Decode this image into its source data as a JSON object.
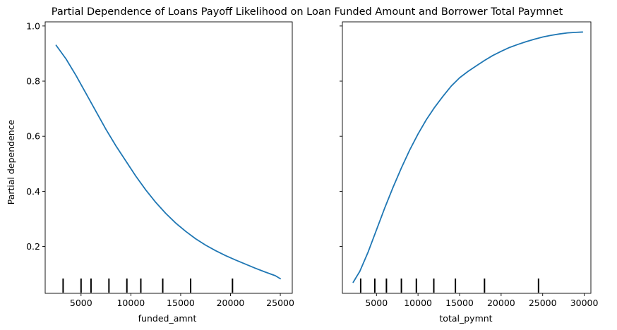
{
  "chart_data": [
    {
      "type": "line",
      "title": "Partial Dependence of Loans Payoff Likelihood on Loan Funded Amount and Borrower Total Paymnet",
      "xlabel": "funded_amnt",
      "ylabel": "Partial dependence",
      "xlim": [
        1400,
        26200
      ],
      "ylim": [
        0.03,
        1.015
      ],
      "xticks": [
        5000,
        10000,
        15000,
        20000,
        25000
      ],
      "xtick_labels": [
        "5000",
        "10000",
        "15000",
        "20000",
        "25000"
      ],
      "yticks": [
        0.2,
        0.4,
        0.6,
        0.8,
        1.0
      ],
      "ytick_labels": [
        "0.2",
        "0.4",
        "0.6",
        "0.8",
        "1.0"
      ],
      "grid": false,
      "line_color": "#1f77b4",
      "series": [
        {
          "x": [
            2500,
            3500,
            4500,
            5500,
            6500,
            7500,
            8500,
            9500,
            10500,
            11500,
            12500,
            13500,
            14500,
            15500,
            16500,
            17500,
            18500,
            19500,
            20500,
            21500,
            22500,
            23500,
            24500,
            25000
          ],
          "y": [
            0.93,
            0.88,
            0.82,
            0.755,
            0.69,
            0.625,
            0.565,
            0.51,
            0.455,
            0.405,
            0.36,
            0.32,
            0.285,
            0.255,
            0.228,
            0.205,
            0.185,
            0.167,
            0.151,
            0.136,
            0.121,
            0.107,
            0.094,
            0.083
          ]
        }
      ],
      "deciles": [
        3200,
        5000,
        6000,
        7800,
        9600,
        11000,
        13200,
        16000,
        20200
      ]
    },
    {
      "type": "line",
      "xlabel": "total_pymnt",
      "ylabel": "",
      "xlim": [
        900,
        30800
      ],
      "ylim": [
        0.03,
        1.015
      ],
      "xticks": [
        5000,
        10000,
        15000,
        20000,
        25000,
        30000
      ],
      "xtick_labels": [
        "5000",
        "10000",
        "15000",
        "20000",
        "25000",
        "30000"
      ],
      "yticks": [
        0.2,
        0.4,
        0.6,
        0.8,
        1.0
      ],
      "ytick_labels": [],
      "grid": false,
      "line_color": "#1f77b4",
      "series": [
        {
          "x": [
            2200,
            3000,
            4000,
            5000,
            6000,
            7000,
            8000,
            9000,
            10000,
            11000,
            12000,
            13000,
            14000,
            15000,
            16000,
            17000,
            18000,
            19000,
            20000,
            21000,
            22000,
            23000,
            24000,
            25000,
            26000,
            27000,
            28000,
            29000,
            29800
          ],
          "y": [
            0.07,
            0.11,
            0.18,
            0.26,
            0.34,
            0.415,
            0.485,
            0.55,
            0.608,
            0.66,
            0.705,
            0.745,
            0.782,
            0.812,
            0.835,
            0.855,
            0.875,
            0.893,
            0.908,
            0.922,
            0.933,
            0.943,
            0.952,
            0.96,
            0.966,
            0.971,
            0.975,
            0.977,
            0.978
          ]
        }
      ],
      "deciles": [
        3100,
        4800,
        6200,
        8000,
        9800,
        11900,
        14500,
        18000,
        24500
      ]
    }
  ]
}
